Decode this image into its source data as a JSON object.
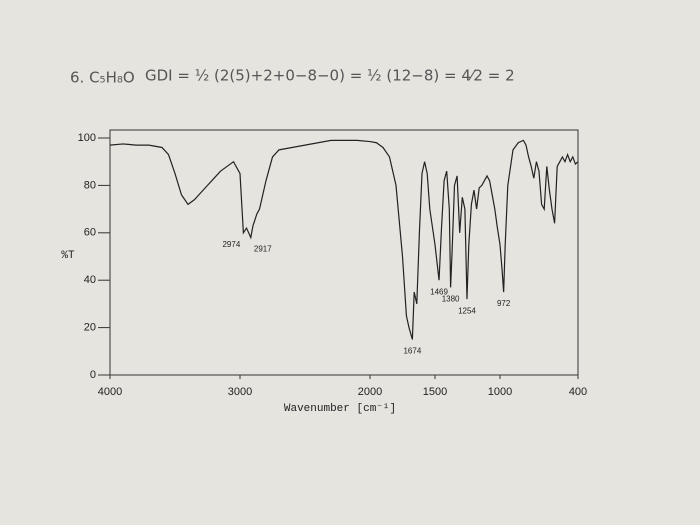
{
  "heading": "6. C₅H₈O",
  "note": "GDI = ½ (2(5)+2+0−8−0) = ½ (12−8) = 4⁄2 = 2",
  "chart_data": {
    "type": "line",
    "x_label": "Wavenumber [cm⁻¹]",
    "y_label": "%T",
    "xlim": [
      4000,
      400
    ],
    "ylim": [
      0,
      100
    ],
    "xticks": [
      4000,
      3000,
      2000,
      1500,
      1000,
      400
    ],
    "yticks": [
      0,
      20,
      40,
      60,
      80,
      100
    ],
    "peak_labels": [
      2974,
      2917,
      1674,
      1469,
      1380,
      1254,
      972
    ],
    "series": [
      {
        "color": "#222222",
        "x": [
          4000,
          3900,
          3800,
          3700,
          3600,
          3550,
          3500,
          3450,
          3400,
          3350,
          3300,
          3250,
          3200,
          3150,
          3100,
          3050,
          3000,
          2974,
          2950,
          2917,
          2900,
          2870,
          2850,
          2800,
          2750,
          2700,
          2600,
          2500,
          2400,
          2300,
          2200,
          2100,
          2000,
          1950,
          1900,
          1850,
          1800,
          1750,
          1720,
          1700,
          1674,
          1660,
          1640,
          1620,
          1600,
          1580,
          1560,
          1540,
          1500,
          1469,
          1450,
          1430,
          1410,
          1390,
          1380,
          1370,
          1350,
          1330,
          1310,
          1290,
          1270,
          1254,
          1240,
          1220,
          1200,
          1180,
          1160,
          1140,
          1120,
          1100,
          1080,
          1060,
          1040,
          1020,
          1000,
          985,
          972,
          960,
          940,
          900,
          860,
          820,
          800,
          780,
          760,
          740,
          720,
          700,
          680,
          660,
          640,
          620,
          600,
          580,
          560,
          540,
          520,
          500,
          480,
          460,
          440,
          420,
          400
        ],
        "values": [
          97,
          97.5,
          97,
          97,
          96,
          93,
          85,
          76,
          72,
          74,
          77,
          80,
          83,
          86,
          88,
          90,
          85,
          60,
          62,
          58,
          63,
          68,
          70,
          82,
          92,
          95,
          96,
          97,
          98,
          99,
          99,
          99,
          98.5,
          98,
          96,
          92,
          80,
          50,
          25,
          20,
          15,
          35,
          30,
          60,
          85,
          90,
          85,
          70,
          55,
          40,
          62,
          82,
          86,
          70,
          37,
          50,
          80,
          84,
          60,
          75,
          70,
          32,
          55,
          72,
          78,
          70,
          79,
          80,
          82,
          84,
          82,
          76,
          70,
          62,
          55,
          45,
          35,
          55,
          80,
          95,
          98,
          99,
          97,
          92,
          88,
          83,
          90,
          86,
          72,
          70,
          88,
          78,
          70,
          64,
          88,
          90,
          92,
          90,
          93,
          90,
          92,
          89,
          90
        ]
      }
    ]
  }
}
